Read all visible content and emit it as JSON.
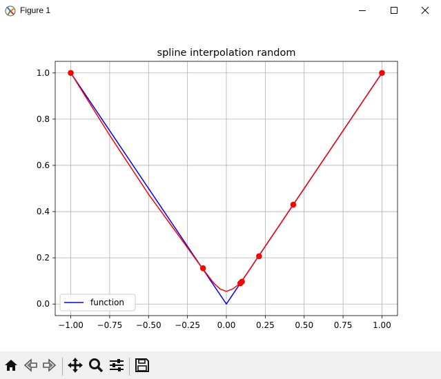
{
  "window": {
    "title": "Figure 1",
    "minimize_icon": "minimize-icon",
    "maximize_icon": "maximize-icon",
    "close_icon": "close-icon"
  },
  "toolbar": {
    "buttons": [
      {
        "name": "home-button",
        "icon": "home-icon"
      },
      {
        "name": "back-button",
        "icon": "back-arrow-icon"
      },
      {
        "name": "forward-button",
        "icon": "forward-arrow-icon"
      },
      {
        "name": "pan-button",
        "icon": "move-icon"
      },
      {
        "name": "zoom-button",
        "icon": "zoom-icon"
      },
      {
        "name": "configure-subplots-button",
        "icon": "sliders-icon"
      },
      {
        "name": "save-button",
        "icon": "save-icon"
      }
    ]
  },
  "chart_data": {
    "type": "line",
    "title": "spline interpolation random",
    "xlabel": "",
    "ylabel": "",
    "xlim": [
      -1.1,
      1.1
    ],
    "ylim": [
      -0.05,
      1.05
    ],
    "xticks": [
      -1.0,
      -0.75,
      -0.5,
      -0.25,
      0.0,
      0.25,
      0.5,
      0.75,
      1.0
    ],
    "xtick_labels": [
      "−1.00",
      "−0.75",
      "−0.50",
      "−0.25",
      "0.00",
      "0.25",
      "0.50",
      "0.75",
      "1.00"
    ],
    "yticks": [
      0.0,
      0.2,
      0.4,
      0.6,
      0.8,
      1.0
    ],
    "ytick_labels": [
      "0.0",
      "0.2",
      "0.4",
      "0.6",
      "0.8",
      "1.0"
    ],
    "grid": true,
    "legend": {
      "placement": "lower-left",
      "entries": [
        "function"
      ]
    },
    "series": [
      {
        "name": "function",
        "color": "#0000ff",
        "x": [
          -1.0,
          0.0,
          1.0
        ],
        "y": [
          1.0,
          0.0,
          1.0
        ]
      },
      {
        "color": "#ff0000",
        "x": [
          -1.0,
          -0.75,
          -0.5,
          -0.3,
          -0.155,
          -0.08,
          -0.04,
          0.0,
          0.04,
          0.08,
          0.095,
          0.15,
          0.205,
          0.3,
          0.43,
          0.7,
          1.0
        ],
        "y": [
          1.0,
          0.73,
          0.475,
          0.29,
          0.155,
          0.09,
          0.065,
          0.055,
          0.065,
          0.085,
          0.095,
          0.15,
          0.205,
          0.3,
          0.43,
          0.7,
          1.0
        ]
      }
    ],
    "points": {
      "color": "#ff0000",
      "x": [
        -1.0,
        -0.15,
        0.09,
        0.1,
        0.21,
        0.43,
        1.0
      ],
      "y": [
        1.0,
        0.155,
        0.09,
        0.097,
        0.207,
        0.43,
        1.0
      ]
    }
  }
}
